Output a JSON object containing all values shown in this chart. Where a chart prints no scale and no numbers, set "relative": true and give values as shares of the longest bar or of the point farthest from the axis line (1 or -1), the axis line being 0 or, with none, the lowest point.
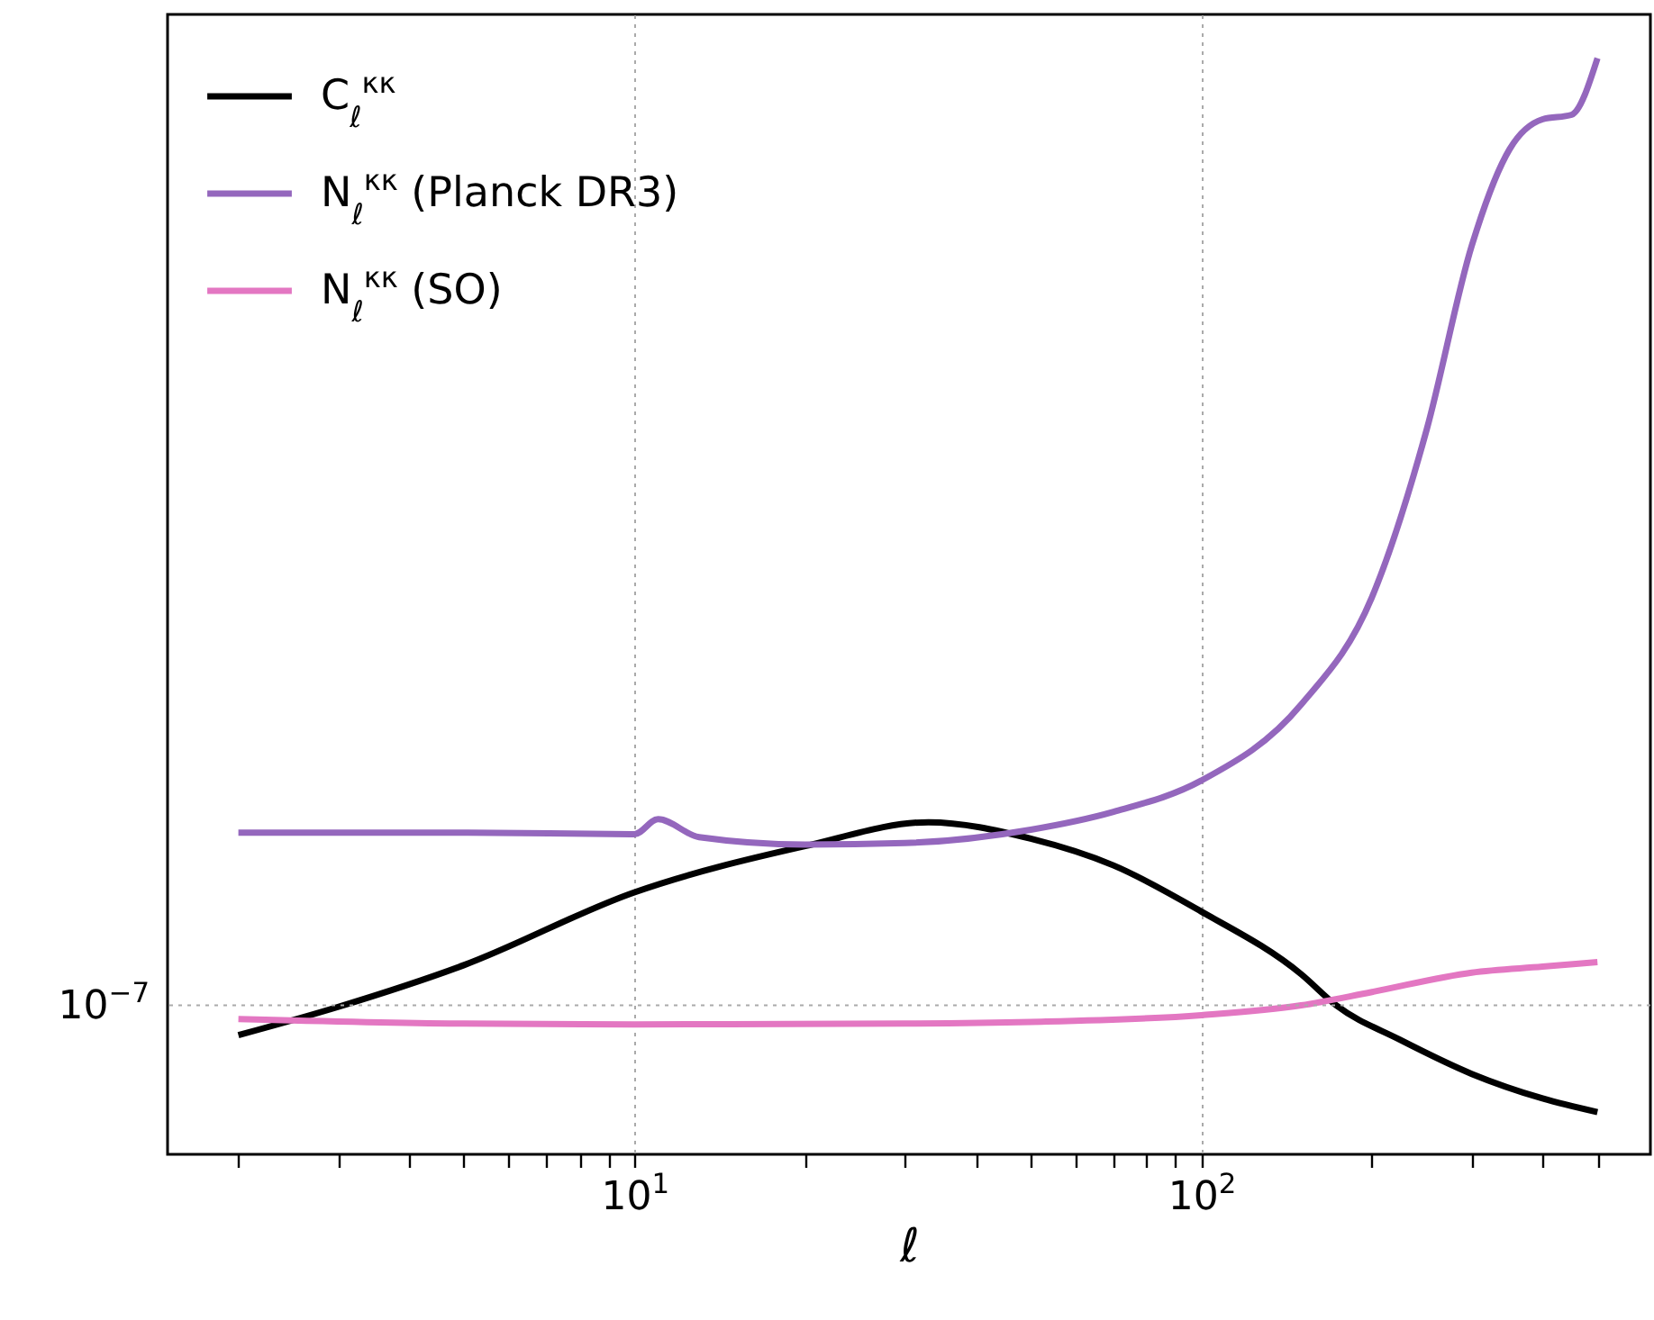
{
  "chart_data": {
    "type": "line",
    "xlabel": "ℓ",
    "log": "x",
    "grid": "x",
    "legend": "top left",
    "relative": true,
    "xlim": [
      1.5,
      620
    ],
    "xticks": [
      {
        "value": 2,
        "label": null
      },
      {
        "value": 3,
        "label": null
      },
      {
        "value": 4,
        "label": null
      },
      {
        "value": 5,
        "label": null
      },
      {
        "value": 6,
        "label": null
      },
      {
        "value": 7,
        "label": null
      },
      {
        "value": 8,
        "label": null
      },
      {
        "value": 9,
        "label": null
      },
      {
        "value": 10,
        "label": "10$^{1}$"
      },
      {
        "value": 20,
        "label": null
      },
      {
        "value": 30,
        "label": null
      },
      {
        "value": 40,
        "label": null
      },
      {
        "value": 50,
        "label": null
      },
      {
        "value": 60,
        "label": null
      },
      {
        "value": 70,
        "label": null
      },
      {
        "value": 80,
        "label": null
      },
      {
        "value": 90,
        "label": null
      },
      {
        "value": 100,
        "label": "10$^{2}$"
      },
      {
        "value": 200,
        "label": null
      },
      {
        "value": 300,
        "label": null
      },
      {
        "value": 400,
        "label": null
      },
      {
        "value": 500,
        "label": null
      }
    ],
    "ref_lines": [
      {
        "axis": "y",
        "value": 0.1359,
        "label": "10$^{−7}$",
        "color": "#aaaaaa",
        "line_style": "dotted"
      }
    ],
    "series": [
      {
        "name": "C$_{ℓ}$$^{κκ}$",
        "color": "#000000",
        "x": [
          2,
          3,
          5,
          10,
          20,
          33,
          50,
          70,
          100,
          150,
          173,
          224,
          300,
          400,
          500
        ],
        "values": [
          0.1087,
          0.1345,
          0.1726,
          0.2391,
          0.2812,
          0.303,
          0.288,
          0.2636,
          0.2215,
          0.1644,
          0.1359,
          0.1046,
          0.0734,
          0.051,
          0.0385
        ]
      },
      {
        "name": "N$_{ℓ}$$^{κκ}$ (Planck DR3)",
        "color": "#9467bd",
        "x": [
          2,
          5,
          10,
          11,
          13,
          20,
          30,
          50,
          70,
          100,
          150,
          200,
          250,
          300,
          350,
          400,
          450,
          500
        ],
        "values": [
          0.2935,
          0.2935,
          0.2921,
          0.3057,
          0.2894,
          0.2826,
          0.284,
          0.2962,
          0.3125,
          0.341,
          0.4103,
          0.5082,
          0.6617,
          0.8288,
          0.9171,
          0.9443,
          0.9484,
          1
        ]
      },
      {
        "name": "N$_{ℓ}$$^{κκ}$ (SO)",
        "color": "#e377c2",
        "x": [
          2,
          5,
          10,
          30,
          50,
          100,
          150,
          200,
          300,
          400,
          500
        ],
        "values": [
          0.1235,
          0.1193,
          0.1186,
          0.1193,
          0.1208,
          0.127,
          0.1359,
          0.1481,
          0.1658,
          0.1712,
          0.1753
        ]
      }
    ]
  }
}
